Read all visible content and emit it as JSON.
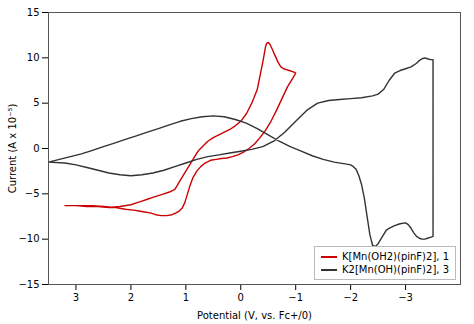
{
  "chart_data": {
    "type": "line",
    "xlabel": "Potential (V, vs. Fc+/0)",
    "ylabel": "Current (A x 10⁻⁵)",
    "xlim": [
      3.5,
      -4
    ],
    "ylim": [
      -15,
      15
    ],
    "xticks": [
      3,
      2,
      1,
      0,
      -1,
      -2,
      -3
    ],
    "yticks": [
      -15,
      -10,
      -5,
      0,
      5,
      10,
      15
    ],
    "grid": false,
    "legend": "lower right",
    "series": [
      {
        "name": "K[Mn(OH2)(pinF)2], 1",
        "color": "#cc0000",
        "x": [
          3.2,
          3.0,
          2.8,
          2.6,
          2.4,
          2.2,
          2.0,
          1.9,
          1.8,
          1.7,
          1.6,
          1.5,
          1.4,
          1.3,
          1.2,
          1.15,
          1.1,
          1.05,
          1.0,
          0.95,
          0.9,
          0.85,
          0.8,
          0.75,
          0.7,
          0.65,
          0.6,
          0.5,
          0.4,
          0.3,
          0.2,
          0.1,
          0.0,
          -0.1,
          -0.2,
          -0.3,
          -0.35,
          -0.4,
          -0.43,
          -0.45,
          -0.47,
          -0.5,
          -0.53,
          -0.57,
          -0.62,
          -0.68,
          -0.73,
          -0.78,
          -0.83,
          -0.88,
          -0.93,
          -0.98,
          -1.0,
          -0.95,
          -0.85,
          -0.75,
          -0.65,
          -0.55,
          -0.45,
          -0.35,
          -0.25,
          -0.15,
          -0.05,
          0.05,
          0.15,
          0.25,
          0.35,
          0.45,
          0.55,
          0.65,
          0.73,
          0.8,
          0.87,
          0.93,
          0.98,
          1.02,
          1.07,
          1.12,
          1.18,
          1.25,
          1.35,
          1.45,
          1.55,
          1.65,
          1.75,
          1.85,
          1.95,
          2.1,
          2.3,
          2.5,
          2.7,
          3.0,
          3.2
        ],
        "values": [
          -6.3,
          -6.3,
          -6.4,
          -6.4,
          -6.5,
          -6.4,
          -6.2,
          -6.0,
          -5.8,
          -5.6,
          -5.4,
          -5.2,
          -5.0,
          -4.8,
          -4.5,
          -4.0,
          -3.5,
          -3.0,
          -2.5,
          -2.0,
          -1.5,
          -1.0,
          -0.5,
          -0.1,
          0.2,
          0.5,
          0.8,
          1.2,
          1.5,
          1.8,
          2.1,
          2.5,
          3.0,
          3.8,
          5.0,
          6.5,
          8.0,
          9.5,
          10.5,
          11.2,
          11.6,
          11.7,
          11.5,
          11.0,
          10.3,
          9.5,
          9.0,
          8.8,
          8.7,
          8.6,
          8.5,
          8.4,
          8.3,
          7.8,
          6.8,
          5.5,
          4.2,
          3.0,
          2.0,
          1.2,
          0.5,
          0.0,
          -0.4,
          -0.7,
          -0.9,
          -1.05,
          -1.1,
          -1.2,
          -1.3,
          -1.6,
          -2.0,
          -2.5,
          -3.2,
          -4.2,
          -5.2,
          -6.0,
          -6.6,
          -6.9,
          -7.1,
          -7.3,
          -7.4,
          -7.4,
          -7.3,
          -7.1,
          -7.0,
          -6.9,
          -6.8,
          -6.7,
          -6.5,
          -6.4,
          -6.3,
          -6.3,
          -6.3
        ]
      },
      {
        "name": "K2[Mn(OH)(pinF)2], 3",
        "color": "#333333",
        "x": [
          3.5,
          3.3,
          3.1,
          2.9,
          2.7,
          2.5,
          2.3,
          2.1,
          1.9,
          1.7,
          1.5,
          1.3,
          1.1,
          0.9,
          0.7,
          0.5,
          0.3,
          0.1,
          -0.1,
          -0.3,
          -0.5,
          -0.7,
          -0.9,
          -1.1,
          -1.3,
          -1.5,
          -1.7,
          -1.9,
          -2.0,
          -2.05,
          -2.1,
          -2.15,
          -2.2,
          -2.25,
          -2.3,
          -2.35,
          -2.4,
          -2.45,
          -2.5,
          -2.55,
          -2.6,
          -2.65,
          -2.7,
          -2.8,
          -2.9,
          -3.0,
          -3.05,
          -3.1,
          -3.15,
          -3.2,
          -3.25,
          -3.3,
          -3.35,
          -3.4,
          -3.45,
          -3.5,
          -3.5,
          -3.45,
          -3.4,
          -3.35,
          -3.3,
          -3.25,
          -3.2,
          -3.1,
          -3.0,
          -2.9,
          -2.8,
          -2.7,
          -2.6,
          -2.5,
          -2.4,
          -2.2,
          -2.0,
          -1.8,
          -1.6,
          -1.4,
          -1.2,
          -1.0,
          -0.8,
          -0.6,
          -0.4,
          -0.2,
          0.0,
          0.2,
          0.4,
          0.6,
          0.8,
          1.0,
          1.2,
          1.4,
          1.6,
          1.8,
          2.0,
          2.2,
          2.4,
          2.6,
          2.8,
          3.0,
          3.2,
          3.5
        ],
        "values": [
          -1.5,
          -1.2,
          -0.9,
          -0.6,
          -0.2,
          0.2,
          0.6,
          1.0,
          1.4,
          1.8,
          2.2,
          2.6,
          3.0,
          3.3,
          3.5,
          3.6,
          3.5,
          3.2,
          2.8,
          2.2,
          1.5,
          0.8,
          0.2,
          -0.3,
          -0.8,
          -1.2,
          -1.5,
          -1.7,
          -1.8,
          -2.0,
          -2.3,
          -3.0,
          -4.0,
          -5.5,
          -7.5,
          -9.5,
          -10.7,
          -10.8,
          -10.5,
          -10.0,
          -9.5,
          -9.0,
          -8.8,
          -8.5,
          -8.3,
          -8.2,
          -8.4,
          -8.8,
          -9.3,
          -9.7,
          -9.9,
          -10.0,
          -10.0,
          -9.9,
          -9.8,
          -9.7,
          9.8,
          9.8,
          9.9,
          10.0,
          9.9,
          9.7,
          9.4,
          9.0,
          8.8,
          8.6,
          8.3,
          7.5,
          6.5,
          6.0,
          5.8,
          5.6,
          5.5,
          5.4,
          5.3,
          5.0,
          4.2,
          3.0,
          1.8,
          0.8,
          0.2,
          -0.1,
          -0.3,
          -0.5,
          -0.7,
          -0.9,
          -1.2,
          -1.6,
          -2.0,
          -2.4,
          -2.7,
          -2.9,
          -3.0,
          -2.9,
          -2.7,
          -2.4,
          -2.1,
          -1.8,
          -1.6,
          -1.5
        ]
      }
    ]
  }
}
